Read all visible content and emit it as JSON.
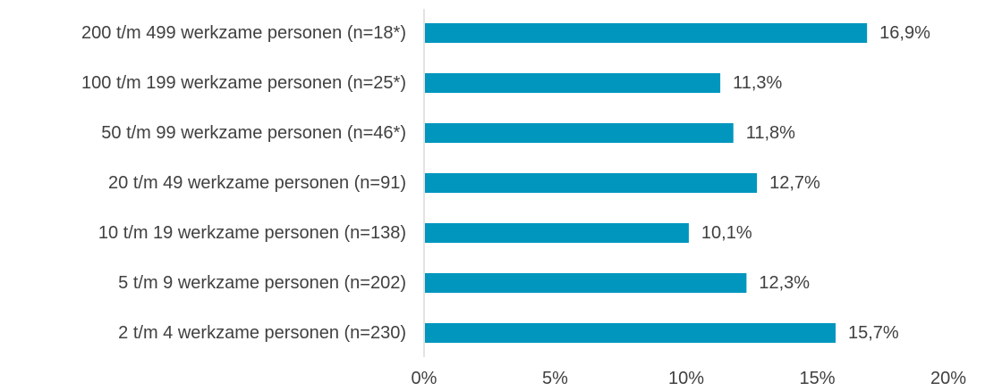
{
  "chart_data": {
    "type": "bar",
    "orientation": "horizontal",
    "categories": [
      "200 t/m 499 werkzame personen (n=18*)",
      "100 t/m 199 werkzame personen (n=25*)",
      "50 t/m 99 werkzame personen (n=46*)",
      "20 t/m 49 werkzame personen (n=91)",
      "10 t/m 19 werkzame personen (n=138)",
      "5 t/m 9 werkzame personen (n=202)",
      "2 t/m 4 werkzame personen (n=230)"
    ],
    "values": [
      16.9,
      11.3,
      11.8,
      12.7,
      10.1,
      12.3,
      15.7
    ],
    "value_labels": [
      "16,9%",
      "11,3%",
      "11,8%",
      "12,7%",
      "10,1%",
      "12,3%",
      "15,7%"
    ],
    "xlim": [
      0,
      20
    ],
    "xticks": [
      0,
      5,
      10,
      15,
      20
    ],
    "xtick_labels": [
      "0%",
      "5%",
      "10%",
      "15%",
      "20%"
    ],
    "grid": false,
    "bar_color": "#0096BE",
    "axis_color": "#D9D9D9"
  }
}
